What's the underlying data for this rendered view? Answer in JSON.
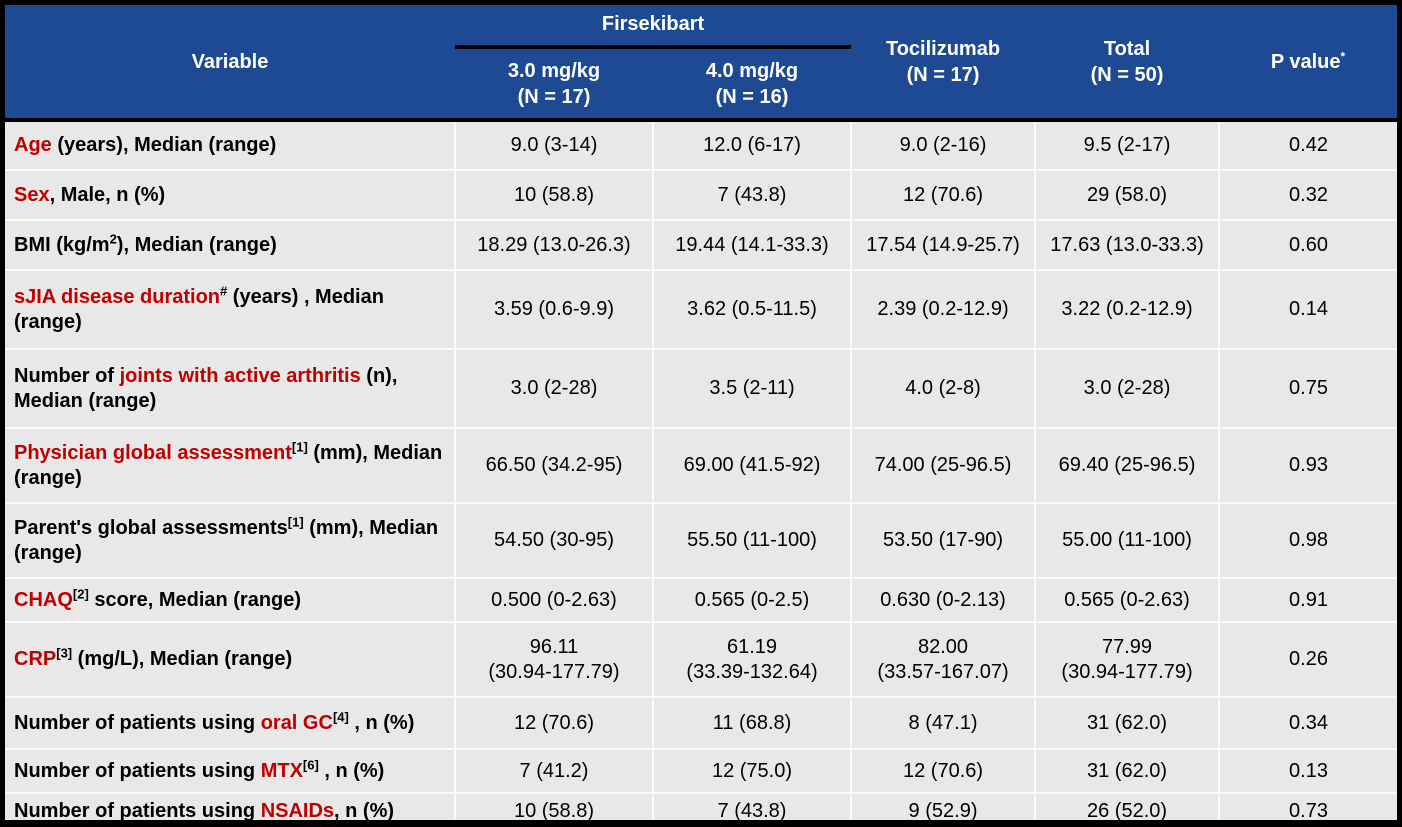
{
  "colors": {
    "header_bg": "#1e4a94",
    "header_text": "#ffffff",
    "accent_red": "#c00000",
    "row_bg": "#e8e8e8",
    "divider": "#fbfbfb",
    "frame": "#000000"
  },
  "table": {
    "header": {
      "variable": "Variable",
      "group": "Firsekibart",
      "subcolumns": [
        {
          "dose": "3.0 mg/kg",
          "n": "(N = 17)"
        },
        {
          "dose": "4.0 mg/kg",
          "n": "(N = 16)"
        }
      ],
      "tocilizumab": {
        "name": "Tocilizumab",
        "n": "(N = 17)"
      },
      "total": {
        "name": "Total",
        "n": "(N = 50)"
      },
      "pvalue": {
        "label": "P value",
        "sup": "*"
      }
    },
    "rows": [
      {
        "label": [
          {
            "text": "Age",
            "red": true
          },
          {
            "text": " (years), Median (range)"
          }
        ],
        "values": [
          "9.0 (3-14)",
          "12.0 (6-17)",
          "9.0 (2-16)",
          "9.5 (2-17)",
          "0.42"
        ]
      },
      {
        "label": [
          {
            "text": "Sex",
            "red": true
          },
          {
            "text": ", Male, n (%)"
          }
        ],
        "values": [
          "10 (58.8)",
          "7 (43.8)",
          "12 (70.6)",
          "29 (58.0)",
          "0.32"
        ]
      },
      {
        "label": [
          {
            "text": "BMI (kg/m"
          },
          {
            "text": "2",
            "sup": true
          },
          {
            "text": "), Median (range)"
          }
        ],
        "values": [
          "18.29 (13.0-26.3)",
          "19.44 (14.1-33.3)",
          "17.54 (14.9-25.7)",
          "17.63 (13.0-33.3)",
          "0.60"
        ]
      },
      {
        "label": [
          {
            "text": "sJIA disease duration",
            "red": true
          },
          {
            "text": "#",
            "sup": true
          },
          {
            "text": " (years) , Median (range)"
          }
        ],
        "values": [
          "3.59 (0.6-9.9)",
          "3.62 (0.5-11.5)",
          "2.39 (0.2-12.9)",
          "3.22 (0.2-12.9)",
          "0.14"
        ]
      },
      {
        "label": [
          {
            "text": "Number of "
          },
          {
            "text": "joints with active arthritis",
            "red": true
          },
          {
            "text": " (n), Median (range)"
          }
        ],
        "values": [
          "3.0 (2-28)",
          "3.5 (2-11)",
          "4.0 (2-8)",
          "3.0 (2-28)",
          "0.75"
        ]
      },
      {
        "label": [
          {
            "text": "Physician global assessment",
            "red": true
          },
          {
            "text": "[1]",
            "sup": true
          },
          {
            "text": " (mm), Median (range)"
          }
        ],
        "values": [
          "66.50 (34.2-95)",
          "69.00 (41.5-92)",
          "74.00 (25-96.5)",
          "69.40 (25-96.5)",
          "0.93"
        ]
      },
      {
        "label": [
          {
            "text": "Parent's global assessments"
          },
          {
            "text": "[1]",
            "sup": true
          },
          {
            "text": " (mm), Median (range)"
          }
        ],
        "values": [
          "54.50 (30-95)",
          "55.50 (11-100)",
          "53.50 (17-90)",
          "55.00 (11-100)",
          "0.98"
        ]
      },
      {
        "label": [
          {
            "text": "CHAQ",
            "red": true
          },
          {
            "text": "[2]",
            "sup": true
          },
          {
            "text": " score, Median (range)"
          }
        ],
        "values": [
          "0.500 (0-2.63)",
          "0.565 (0-2.5)",
          "0.630 (0-2.13)",
          "0.565 (0-2.63)",
          "0.91"
        ]
      },
      {
        "label": [
          {
            "text": "CRP",
            "red": true
          },
          {
            "text": "[3]",
            "sup": true
          },
          {
            "text": " (mg/L), Median (range)"
          }
        ],
        "values": [
          "96.11\n(30.94-177.79)",
          "61.19\n(33.39-132.64)",
          "82.00\n(33.57-167.07)",
          "77.99\n(30.94-177.79)",
          "0.26"
        ]
      },
      {
        "label": [
          {
            "text": "Number of patients using "
          },
          {
            "text": "oral GC",
            "red": true
          },
          {
            "text": "[4]",
            "sup": true
          },
          {
            "text": " , n (%)"
          }
        ],
        "values": [
          "12 (70.6)",
          "11 (68.8)",
          "8 (47.1)",
          "31 (62.0)",
          "0.34"
        ]
      },
      {
        "label": [
          {
            "text": "Number of patients using "
          },
          {
            "text": "MTX",
            "red": true
          },
          {
            "text": "[6]",
            "sup": true
          },
          {
            "text": " , n (%)"
          }
        ],
        "values": [
          "7 (41.2)",
          "12 (75.0)",
          "12 (70.6)",
          "31 (62.0)",
          "0.13"
        ]
      },
      {
        "label": [
          {
            "text": "Number of patients using "
          },
          {
            "text": "NSAIDs",
            "red": true
          },
          {
            "text": ", n (%)"
          }
        ],
        "values": [
          "10 (58.8)",
          "7 (43.8)",
          "9 (52.9)",
          "26 (52.0)",
          "0.73"
        ]
      }
    ]
  }
}
